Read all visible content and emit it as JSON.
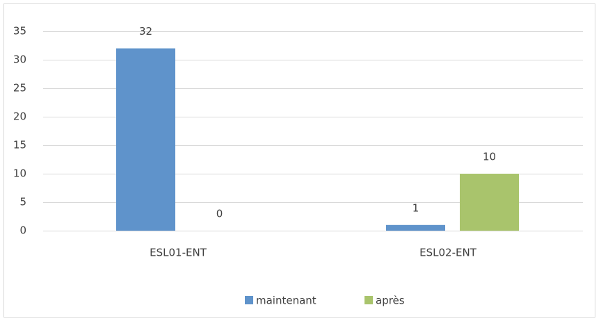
{
  "chart_data": {
    "type": "bar",
    "categories": [
      "ESL01-ENT",
      "ESL02-ENT"
    ],
    "series": [
      {
        "name": "maintenant",
        "color": "#5f93cb",
        "values": [
          32,
          1
        ]
      },
      {
        "name": "après",
        "color": "#a9c46c",
        "values": [
          0,
          10
        ]
      }
    ],
    "ylim": [
      0,
      35
    ],
    "yticks": [
      0,
      5,
      10,
      15,
      20,
      25,
      30,
      35
    ],
    "grid": true,
    "legend": "bottom"
  }
}
